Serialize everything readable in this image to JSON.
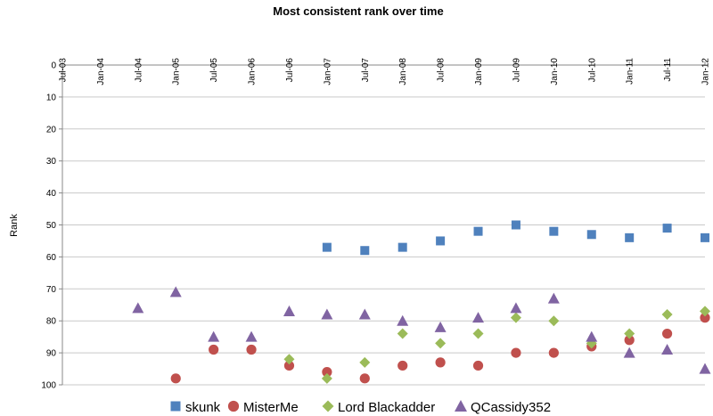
{
  "chart_data": {
    "type": "scatter",
    "title": "Most consistent rank over time",
    "xlabel": "",
    "ylabel": "Rank",
    "y_reversed": true,
    "ylim": [
      0,
      100
    ],
    "yticks": [
      0,
      10,
      20,
      30,
      40,
      50,
      60,
      70,
      80,
      90,
      100
    ],
    "xlim": [
      "2003-07",
      "2012-01"
    ],
    "xticks": [
      "Jul-03",
      "Jan-04",
      "Jul-04",
      "Jan-05",
      "Jul-05",
      "Jan-06",
      "Jul-06",
      "Jan-07",
      "Jul-07",
      "Jan-08",
      "Jul-08",
      "Jan-09",
      "Jul-09",
      "Jan-10",
      "Jul-10",
      "Jan-11",
      "Jul-11",
      "Jan-12"
    ],
    "grid": "horizontal",
    "legend": "bottom",
    "series": [
      {
        "name": "skunk",
        "color": "#4f81bd",
        "marker": "square",
        "points": [
          [
            "Jan-07",
            57
          ],
          [
            "Jul-07",
            58
          ],
          [
            "Jan-08",
            57
          ],
          [
            "Jul-08",
            55
          ],
          [
            "Jan-09",
            52
          ],
          [
            "Jul-09",
            50
          ],
          [
            "Jan-10",
            52
          ],
          [
            "Jul-10",
            53
          ],
          [
            "Jan-11",
            54
          ],
          [
            "Jul-11",
            51
          ],
          [
            "Jan-12",
            54
          ]
        ]
      },
      {
        "name": "MisterMe",
        "color": "#c0504d",
        "marker": "circle",
        "points": [
          [
            "Jan-05",
            98
          ],
          [
            "Jul-05",
            89
          ],
          [
            "Jan-06",
            89
          ],
          [
            "Jul-06",
            94
          ],
          [
            "Jan-07",
            96
          ],
          [
            "Jul-07",
            98
          ],
          [
            "Jan-08",
            94
          ],
          [
            "Jul-08",
            93
          ],
          [
            "Jan-09",
            94
          ],
          [
            "Jul-09",
            90
          ],
          [
            "Jan-10",
            90
          ],
          [
            "Jul-10",
            88
          ],
          [
            "Jan-11",
            86
          ],
          [
            "Jul-11",
            84
          ],
          [
            "Jan-12",
            79
          ]
        ]
      },
      {
        "name": "Lord Blackadder",
        "color": "#9bbb59",
        "marker": "diamond",
        "points": [
          [
            "Jul-06",
            92
          ],
          [
            "Jan-07",
            98
          ],
          [
            "Jul-07",
            93
          ],
          [
            "Jan-08",
            84
          ],
          [
            "Jul-08",
            87
          ],
          [
            "Jan-09",
            84
          ],
          [
            "Jul-09",
            79
          ],
          [
            "Jan-10",
            80
          ],
          [
            "Jul-10",
            87
          ],
          [
            "Jan-11",
            84
          ],
          [
            "Jul-11",
            78
          ],
          [
            "Jan-12",
            77
          ]
        ]
      },
      {
        "name": "QCassidy352",
        "color": "#8064a2",
        "marker": "triangle",
        "points": [
          [
            "Jul-04",
            76
          ],
          [
            "Jan-05",
            71
          ],
          [
            "Jul-05",
            85
          ],
          [
            "Jan-06",
            85
          ],
          [
            "Jul-06",
            77
          ],
          [
            "Jan-07",
            78
          ],
          [
            "Jul-07",
            78
          ],
          [
            "Jan-08",
            80
          ],
          [
            "Jul-08",
            82
          ],
          [
            "Jan-09",
            79
          ],
          [
            "Jul-09",
            76
          ],
          [
            "Jan-10",
            73
          ],
          [
            "Jul-10",
            85
          ],
          [
            "Jan-11",
            90
          ],
          [
            "Jul-11",
            89
          ],
          [
            "Jan-12",
            95
          ]
        ]
      }
    ]
  }
}
